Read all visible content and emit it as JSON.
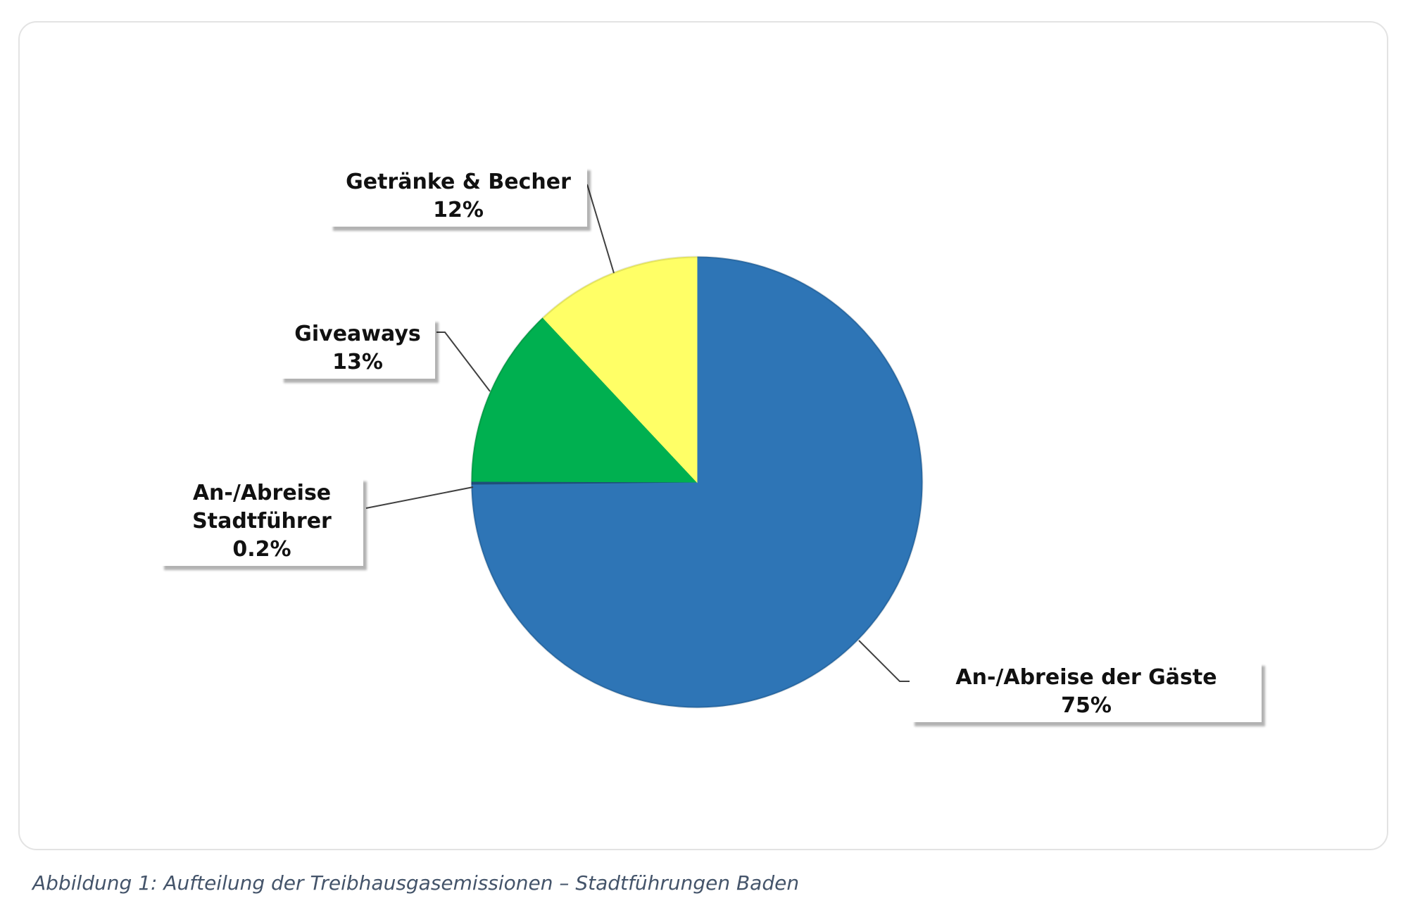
{
  "chart_data": {
    "type": "pie",
    "title": "",
    "start_angle_deg": 0,
    "direction": "clockwise",
    "slices": [
      {
        "label": "An-/Abreise der Gäste",
        "value": 75,
        "value_label": "75%",
        "color": "#2e75b6"
      },
      {
        "label": "An-/Abreise Stadtführer",
        "value": 0.2,
        "value_label": "0.2%",
        "color": "#1f4e79"
      },
      {
        "label": "Giveaways",
        "value": 13,
        "value_label": "13%",
        "color": "#00b050"
      },
      {
        "label": "Getränke & Becher",
        "value": 12,
        "value_label": "12%",
        "color": "#ffff66"
      }
    ],
    "callouts": [
      {
        "line1": "Getränke & Becher",
        "line2": "12%"
      },
      {
        "line1": "Giveaways",
        "line2": "13%"
      },
      {
        "line1": "An-/Abreise",
        "line2": "Stadtführer",
        "line3": "0.2%"
      },
      {
        "line1": "An-/Abreise der Gäste",
        "line2": "75%"
      }
    ],
    "legend": "none",
    "leader_line_color": "#404040"
  },
  "caption": "Abbildung 1: Aufteilung der Treibhausgasemissionen – Stadtführungen Baden"
}
